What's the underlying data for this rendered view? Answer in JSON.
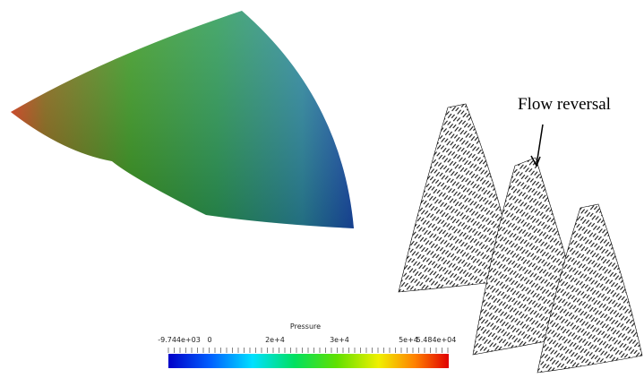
{
  "annotation": "Flow reversal",
  "colorbar": {
    "title": "Pressure",
    "tick_labels": [
      "-9.744e+03",
      "0",
      "2e+4",
      "3e+4",
      "5e+4",
      "5.484e+04"
    ]
  }
}
